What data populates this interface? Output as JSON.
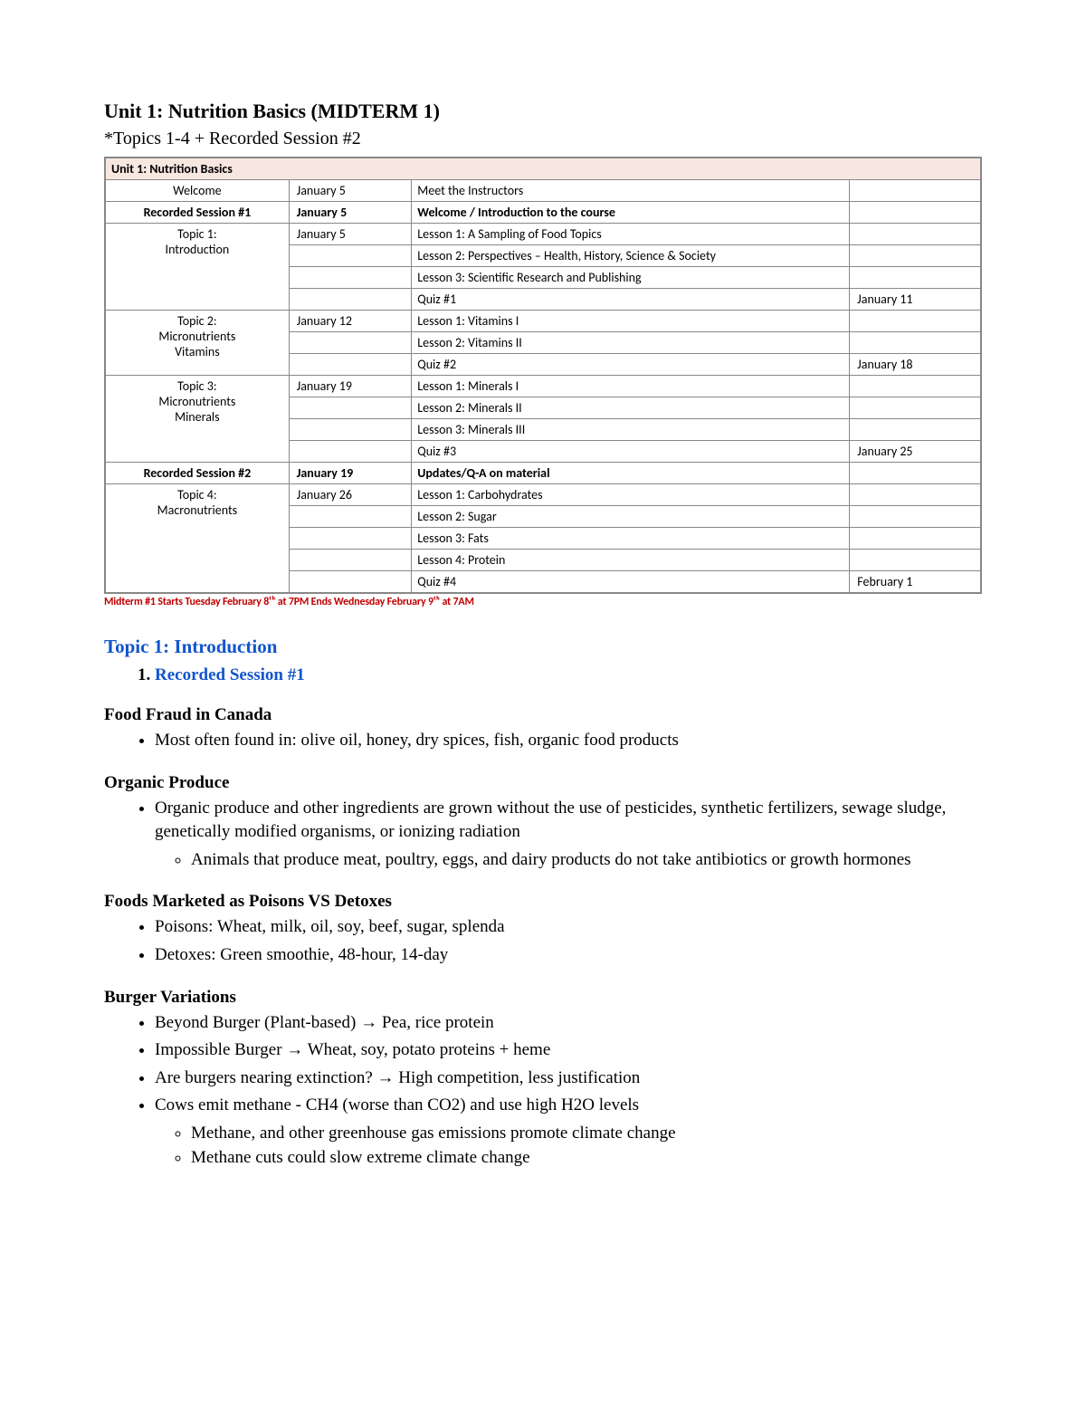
{
  "title": "Unit 1: Nutrition Basics (MIDTERM 1)",
  "subtitle": "*Topics 1-4 + Recorded Session #2",
  "table": {
    "unit_header": "Unit 1: Nutrition Basics",
    "rows": [
      {
        "type": "plain",
        "topic": "Welcome",
        "date": "January 5",
        "desc": "Meet the Instructors",
        "due": ""
      },
      {
        "type": "bold",
        "topic": "Recorded Session #1",
        "date": "January 5",
        "desc": "Welcome / Introduction to the course",
        "due": ""
      },
      {
        "type": "group",
        "topic": "Topic 1:\nIntroduction",
        "rows": [
          {
            "date": "January 5",
            "desc": "Lesson 1: A Sampling of Food Topics",
            "due": ""
          },
          {
            "date": "",
            "desc": "Lesson 2: Perspectives – Health, History, Science & Society",
            "due": ""
          },
          {
            "date": "",
            "desc": "Lesson 3: Scientific Research and Publishing",
            "due": ""
          },
          {
            "date": "",
            "desc": "Quiz #1",
            "due": "January 11"
          }
        ]
      },
      {
        "type": "group",
        "topic": "Topic 2:\nMicronutrients\nVitamins",
        "rows": [
          {
            "date": "January 12",
            "desc": "Lesson 1: Vitamins I",
            "due": ""
          },
          {
            "date": "",
            "desc": "Lesson 2: Vitamins II",
            "due": ""
          },
          {
            "date": "",
            "desc": "Quiz #2",
            "due": "January 18"
          }
        ]
      },
      {
        "type": "group",
        "topic": "Topic 3:\nMicronutrients\nMinerals",
        "rows": [
          {
            "date": "January 19",
            "desc": "Lesson 1: Minerals I",
            "due": ""
          },
          {
            "date": "",
            "desc": "Lesson 2: Minerals II",
            "due": ""
          },
          {
            "date": "",
            "desc": "Lesson 3: Minerals III",
            "due": ""
          },
          {
            "date": "",
            "desc": "Quiz #3",
            "due": "January 25"
          }
        ]
      },
      {
        "type": "bold",
        "topic": "Recorded Session #2",
        "date": "January 19",
        "desc": "Updates/Q-A on material",
        "due": ""
      },
      {
        "type": "group",
        "topic": "Topic 4:\nMacronutrients",
        "rows": [
          {
            "date": "January 26",
            "desc": "Lesson 1: Carbohydrates",
            "due": ""
          },
          {
            "date": "",
            "desc": "Lesson 2: Sugar",
            "due": ""
          },
          {
            "date": "",
            "desc": "Lesson 3: Fats",
            "due": ""
          },
          {
            "date": "",
            "desc": "Lesson 4: Protein",
            "due": ""
          },
          {
            "date": "",
            "desc": "Quiz #4",
            "due": "February 1"
          }
        ]
      }
    ],
    "midterm_note": "Midterm #1 Starts Tuesday February 8ᵗʰ at 7PM Ends Wednesday February 9ᵗʰ at 7AM"
  },
  "topic1_heading": "Topic 1: Introduction",
  "recorded_item": "Recorded Session #1",
  "sections": [
    {
      "title": "Food Fraud in Canada",
      "bullets": [
        {
          "text": "Most often found in: olive oil, honey, dry spices, fish, organic food products"
        }
      ]
    },
    {
      "title": "Organic Produce",
      "bullets": [
        {
          "text": "Organic produce and other ingredients are grown without the use of pesticides, synthetic fertilizers, sewage sludge, genetically modified organisms, or ionizing radiation",
          "sub": [
            "Animals that produce meat, poultry, eggs, and dairy products do not take antibiotics or growth hormones"
          ]
        }
      ]
    },
    {
      "title": "Foods Marketed as Poisons VS Detoxes",
      "bullets": [
        {
          "text": "Poisons: Wheat, milk, oil, soy, beef, sugar, splenda"
        },
        {
          "text": "Detoxes: Green smoothie, 48-hour, 14-day"
        }
      ]
    },
    {
      "title": "Burger Variations",
      "bullets": [
        {
          "text": "Beyond Burger (Plant-based) → Pea, rice protein"
        },
        {
          "text": "Impossible Burger → Wheat, soy, potato proteins + heme"
        },
        {
          "text": "Are burgers nearing extinction? → High competition, less justification"
        },
        {
          "text": "Cows emit methane - CH4 (worse than CO2) and use high H2O levels",
          "sub": [
            "Methane, and other greenhouse gas emissions promote climate change",
            "Methane cuts could slow extreme climate change"
          ]
        }
      ]
    }
  ]
}
